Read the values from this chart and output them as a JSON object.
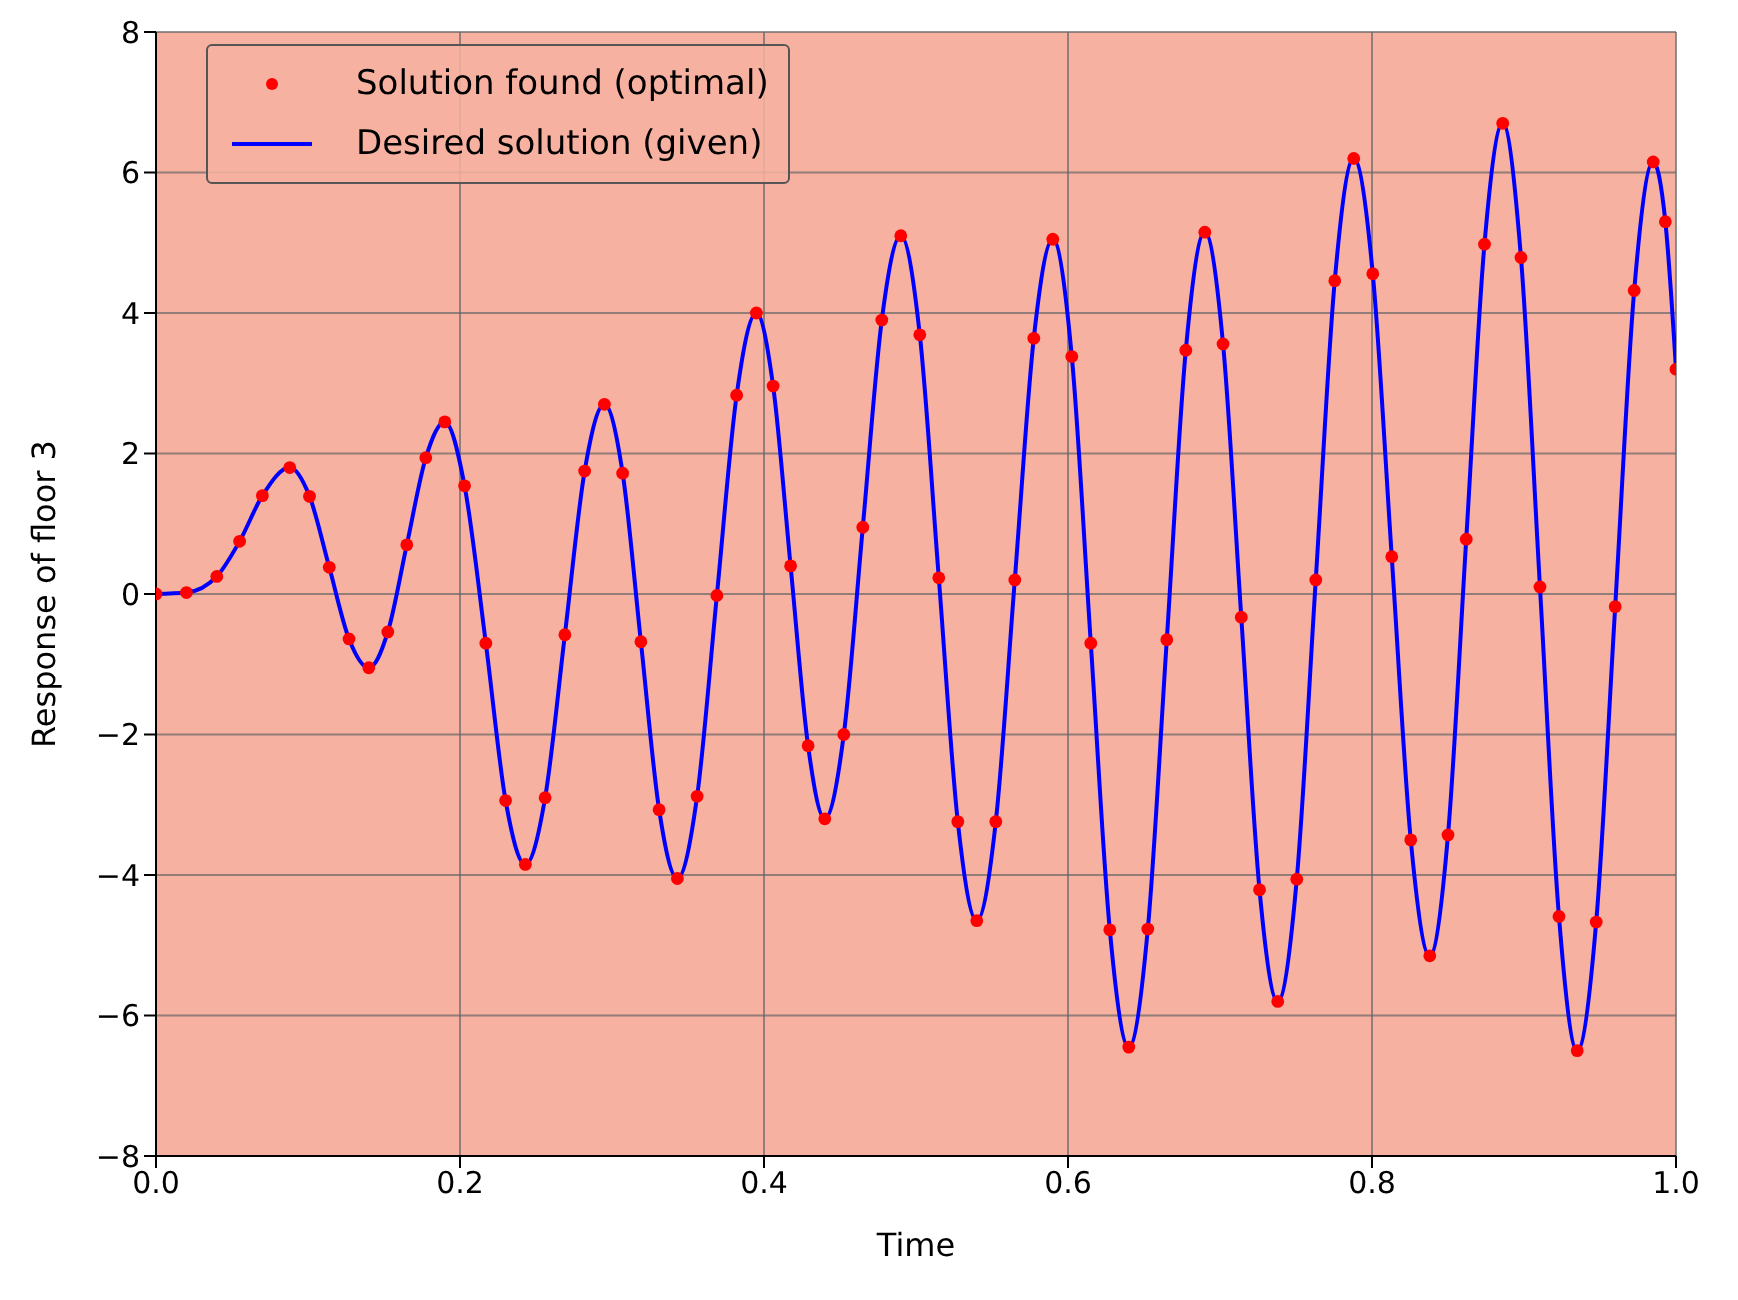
{
  "chart_data": {
    "type": "line",
    "xlabel": "Time",
    "ylabel": "Response of floor 3",
    "x": [
      0,
      0.02,
      0.04,
      0.055,
      0.07,
      0.088,
      0.101,
      0.114,
      0.127,
      0.14,
      0.1525,
      0.165,
      0.1775,
      0.19,
      0.203,
      0.217,
      0.23,
      0.243,
      0.256,
      0.269,
      0.282,
      0.295,
      0.307,
      0.319,
      0.331,
      0.343,
      0.356,
      0.369,
      0.382,
      0.395,
      0.406,
      0.4175,
      0.429,
      0.44,
      0.4525,
      0.465,
      0.4775,
      0.49,
      0.5025,
      0.515,
      0.5275,
      0.54,
      0.5525,
      0.565,
      0.5775,
      0.59,
      0.6025,
      0.615,
      0.6275,
      0.64,
      0.6525,
      0.665,
      0.6775,
      0.69,
      0.702,
      0.714,
      0.726,
      0.738,
      0.7505,
      0.763,
      0.7755,
      0.788,
      0.8005,
      0.813,
      0.8255,
      0.838,
      0.85,
      0.862,
      0.874,
      0.886,
      0.898,
      0.9105,
      0.923,
      0.935,
      0.9475,
      0.96,
      0.9725,
      0.985,
      0.993,
      1.0
    ],
    "series": [
      {
        "name": "Solution found (optimal)",
        "type": "scatter",
        "marker": "circle",
        "color": "#ff0000",
        "values": [
          0,
          0.02,
          0.25,
          0.75,
          1.4,
          1.8,
          1.39,
          0.38,
          -0.64,
          -1.05,
          -0.54,
          0.7,
          1.94,
          2.45,
          1.54,
          -0.7,
          -2.94,
          -3.85,
          -2.9,
          -0.58,
          1.75,
          2.7,
          1.72,
          -0.68,
          -3.07,
          -4.05,
          -2.88,
          -0.02,
          2.83,
          4.0,
          2.96,
          0.4,
          -2.16,
          -3.2,
          -2.0,
          0.95,
          3.9,
          5.1,
          3.69,
          0.23,
          -3.24,
          -4.65,
          -3.24,
          0.2,
          3.64,
          5.05,
          3.38,
          -0.7,
          -4.78,
          -6.45,
          -4.77,
          -0.65,
          3.47,
          5.15,
          3.56,
          -0.33,
          -4.21,
          -5.8,
          -4.06,
          0.2,
          4.46,
          6.2,
          4.56,
          0.53,
          -3.5,
          -5.15,
          -3.43,
          0.78,
          4.98,
          6.7,
          4.79,
          0.1,
          -4.59,
          -6.5,
          -4.67,
          -0.18,
          4.32,
          6.15,
          5.3,
          3.2
        ]
      },
      {
        "name": "Desired solution (given)",
        "marker": "none",
        "line_style": "solid",
        "color": "#0000ff",
        "values": [
          0,
          0.02,
          0.25,
          0.75,
          1.4,
          1.8,
          1.39,
          0.38,
          -0.64,
          -1.05,
          -0.54,
          0.7,
          1.94,
          2.45,
          1.54,
          -0.7,
          -2.94,
          -3.85,
          -2.9,
          -0.58,
          1.75,
          2.7,
          1.72,
          -0.68,
          -3.07,
          -4.05,
          -2.88,
          -0.02,
          2.83,
          4.0,
          2.96,
          0.4,
          -2.16,
          -3.2,
          -2.0,
          0.95,
          3.9,
          5.1,
          3.69,
          0.23,
          -3.24,
          -4.65,
          -3.24,
          0.2,
          3.64,
          5.05,
          3.38,
          -0.7,
          -4.78,
          -6.45,
          -4.77,
          -0.65,
          3.47,
          5.15,
          3.56,
          -0.33,
          -4.21,
          -5.8,
          -4.06,
          0.2,
          4.46,
          6.2,
          4.56,
          0.53,
          -3.5,
          -5.15,
          -3.43,
          0.78,
          4.98,
          6.7,
          4.79,
          0.1,
          -4.59,
          -6.5,
          -4.67,
          -0.18,
          4.32,
          6.15,
          5.3,
          3.2
        ]
      }
    ],
    "xlim": [
      0,
      1
    ],
    "xticks": [
      {
        "value": 0,
        "label": "0.0"
      },
      {
        "value": 0.2,
        "label": "0.2"
      },
      {
        "value": 0.4,
        "label": "0.4"
      },
      {
        "value": 0.6,
        "label": "0.6"
      },
      {
        "value": 0.8,
        "label": "0.8"
      },
      {
        "value": 1,
        "label": "1.0"
      }
    ],
    "ylim": [
      -8,
      8
    ],
    "yticks": [
      {
        "value": -8,
        "label": "−8"
      },
      {
        "value": -6,
        "label": "−6"
      },
      {
        "value": -4,
        "label": "−4"
      },
      {
        "value": -2,
        "label": "−2"
      },
      0,
      2,
      4,
      6,
      8
    ],
    "grid": true,
    "legend": "top left"
  }
}
